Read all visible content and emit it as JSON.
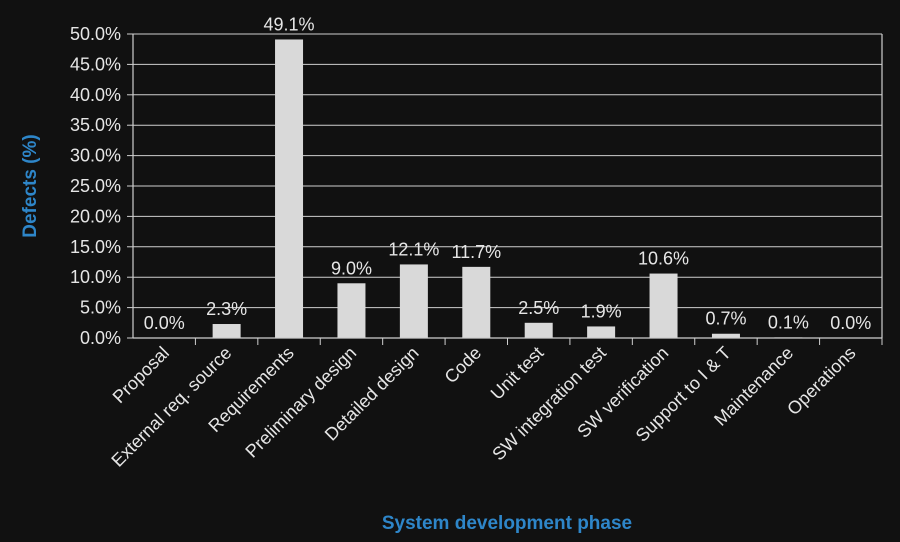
{
  "chart_data": {
    "type": "bar",
    "categories": [
      "Proposal",
      "External req. source",
      "Requirements",
      "Preliminary design",
      "Detailed design",
      "Code",
      "Unit test",
      "SW integration test",
      "SW verification",
      "Support to I & T",
      "Maintenance",
      "Operations"
    ],
    "values": [
      0.0,
      2.3,
      49.1,
      9.0,
      12.1,
      11.7,
      2.5,
      1.9,
      10.6,
      0.7,
      0.1,
      0.0
    ],
    "data_labels": [
      "0.0%",
      "2.3%",
      "49.1%",
      "9.0%",
      "12.1%",
      "11.7%",
      "2.5%",
      "1.9%",
      "10.6%",
      "0.7%",
      "0.1%",
      "0.0%"
    ],
    "yticks": [
      "0.0%",
      "5.0%",
      "10.0%",
      "15.0%",
      "20.0%",
      "25.0%",
      "30.0%",
      "35.0%",
      "40.0%",
      "45.0%",
      "50.0%"
    ],
    "ylim": [
      0,
      50
    ],
    "xlabel": "System development phase",
    "ylabel": "Defects (%)",
    "grid": true,
    "colors": {
      "background": "#111111",
      "bar": "#d9d9d9",
      "grid": "#cfcfcf",
      "axis_title": "#2e86c9",
      "text": "#e6e6e6"
    }
  }
}
